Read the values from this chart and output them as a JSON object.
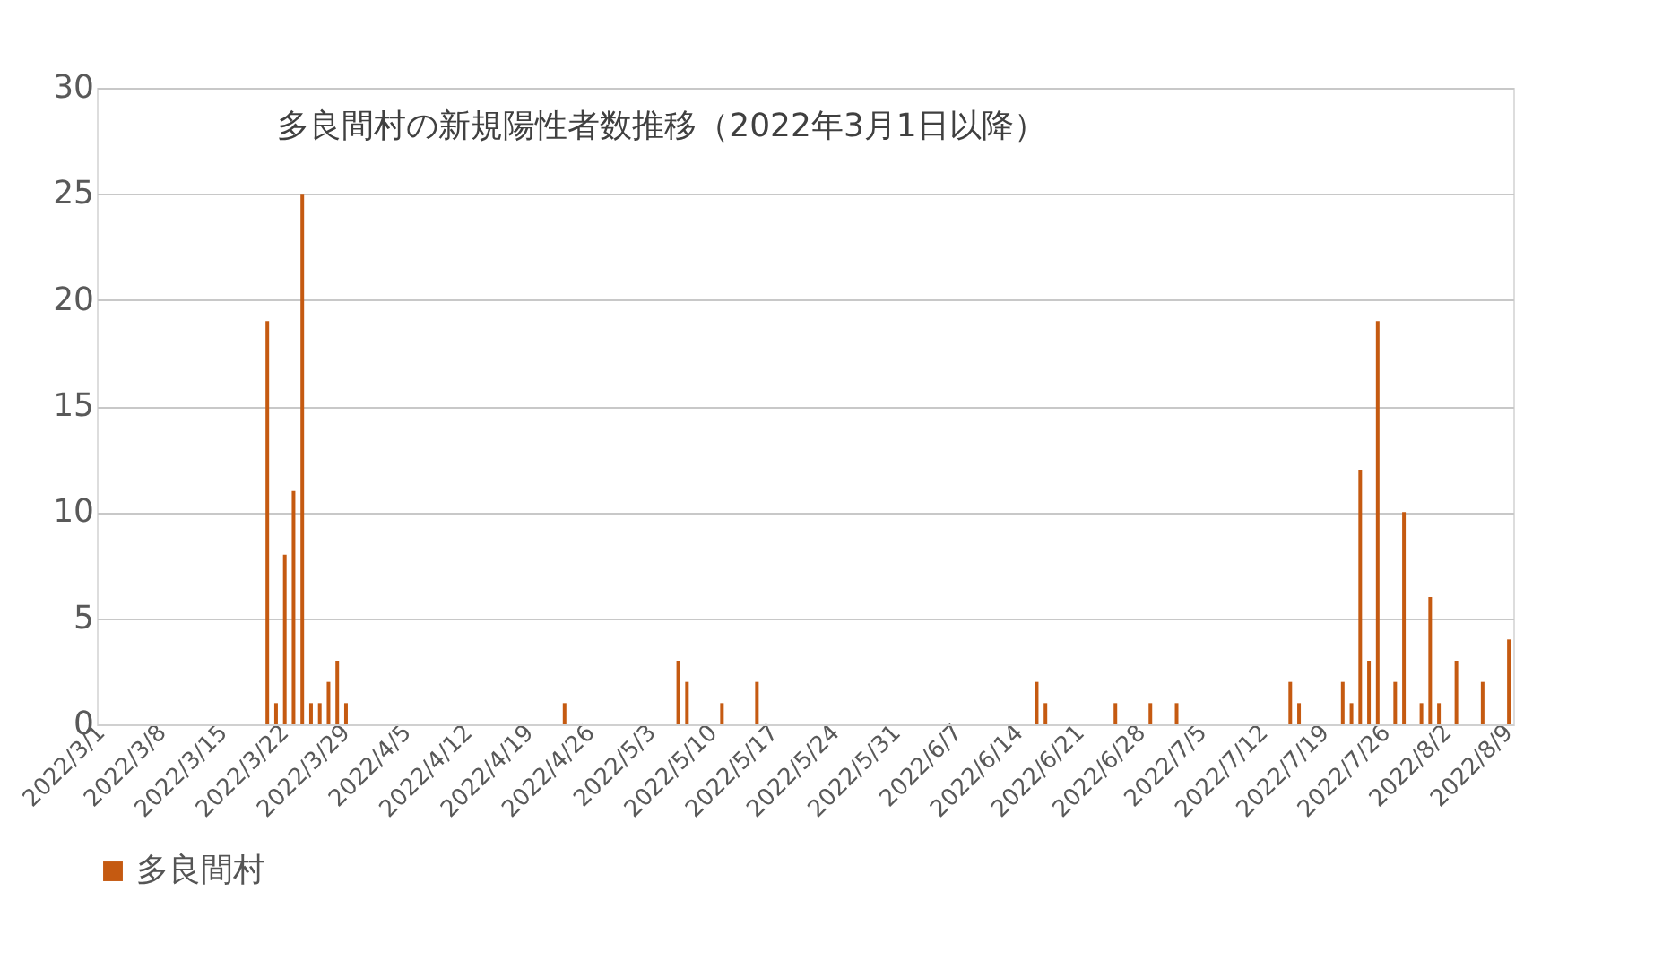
{
  "chart_data": {
    "type": "bar",
    "title": "多良間村の新規陽性者数推移（2022年3月1日以降）",
    "categories": [
      "2022/3/1",
      null,
      null,
      null,
      null,
      null,
      null,
      "2022/3/8",
      null,
      null,
      null,
      null,
      null,
      null,
      "2022/3/15",
      null,
      null,
      null,
      null,
      null,
      null,
      "2022/3/22",
      null,
      null,
      null,
      null,
      null,
      null,
      "2022/3/29",
      null,
      null,
      null,
      null,
      null,
      null,
      "2022/4/5",
      null,
      null,
      null,
      null,
      null,
      null,
      "2022/4/12",
      null,
      null,
      null,
      null,
      null,
      null,
      "2022/4/19",
      null,
      null,
      null,
      null,
      null,
      null,
      "2022/4/26",
      null,
      null,
      null,
      null,
      null,
      null,
      "2022/5/3",
      null,
      null,
      null,
      null,
      null,
      null,
      "2022/5/10",
      null,
      null,
      null,
      null,
      null,
      null,
      "2022/5/17",
      null,
      null,
      null,
      null,
      null,
      null,
      "2022/5/24",
      null,
      null,
      null,
      null,
      null,
      null,
      "2022/5/31",
      null,
      null,
      null,
      null,
      null,
      null,
      "2022/6/7",
      null,
      null,
      null,
      null,
      null,
      null,
      "2022/6/14",
      null,
      null,
      null,
      null,
      null,
      null,
      "2022/6/21",
      null,
      null,
      null,
      null,
      null,
      null,
      "2022/6/28",
      null,
      null,
      null,
      null,
      null,
      null,
      "2022/7/5",
      null,
      null,
      null,
      null,
      null,
      null,
      "2022/7/12",
      null,
      null,
      null,
      null,
      null,
      null,
      "2022/7/19",
      null,
      null,
      null,
      null,
      null,
      null,
      "2022/7/26",
      null,
      null,
      null,
      null,
      null,
      null,
      "2022/8/2",
      null,
      null,
      null,
      null,
      null,
      null,
      "2022/8/9"
    ],
    "series": [
      {
        "name": "多良間村",
        "color": "#c55a11",
        "values": [
          0,
          0,
          0,
          0,
          0,
          0,
          0,
          0,
          0,
          0,
          0,
          0,
          0,
          0,
          0,
          0,
          0,
          0,
          0,
          19,
          1,
          8,
          11,
          25,
          1,
          1,
          2,
          3,
          1,
          0,
          0,
          0,
          0,
          0,
          0,
          0,
          0,
          0,
          0,
          0,
          0,
          0,
          0,
          0,
          0,
          0,
          0,
          0,
          0,
          0,
          0,
          0,
          0,
          1,
          0,
          0,
          0,
          0,
          0,
          0,
          0,
          0,
          0,
          0,
          0,
          0,
          3,
          2,
          0,
          0,
          0,
          1,
          0,
          0,
          0,
          2,
          0,
          0,
          0,
          0,
          0,
          0,
          0,
          0,
          0,
          0,
          0,
          0,
          0,
          0,
          0,
          0,
          0,
          0,
          0,
          0,
          0,
          0,
          0,
          0,
          0,
          0,
          0,
          0,
          0,
          0,
          0,
          2,
          1,
          0,
          0,
          0,
          0,
          0,
          0,
          0,
          1,
          0,
          0,
          0,
          1,
          0,
          0,
          1,
          0,
          0,
          0,
          0,
          0,
          0,
          0,
          0,
          0,
          0,
          0,
          0,
          2,
          1,
          0,
          0,
          0,
          0,
          2,
          1,
          12,
          3,
          19,
          0,
          2,
          10,
          0,
          1,
          6,
          1,
          0,
          3,
          0,
          0,
          2,
          0,
          0,
          4
        ]
      }
    ],
    "ylim": [
      0,
      30
    ],
    "yticks": [
      0,
      5,
      10,
      15,
      20,
      25,
      30
    ],
    "grid": "y",
    "legend": "bottom"
  }
}
